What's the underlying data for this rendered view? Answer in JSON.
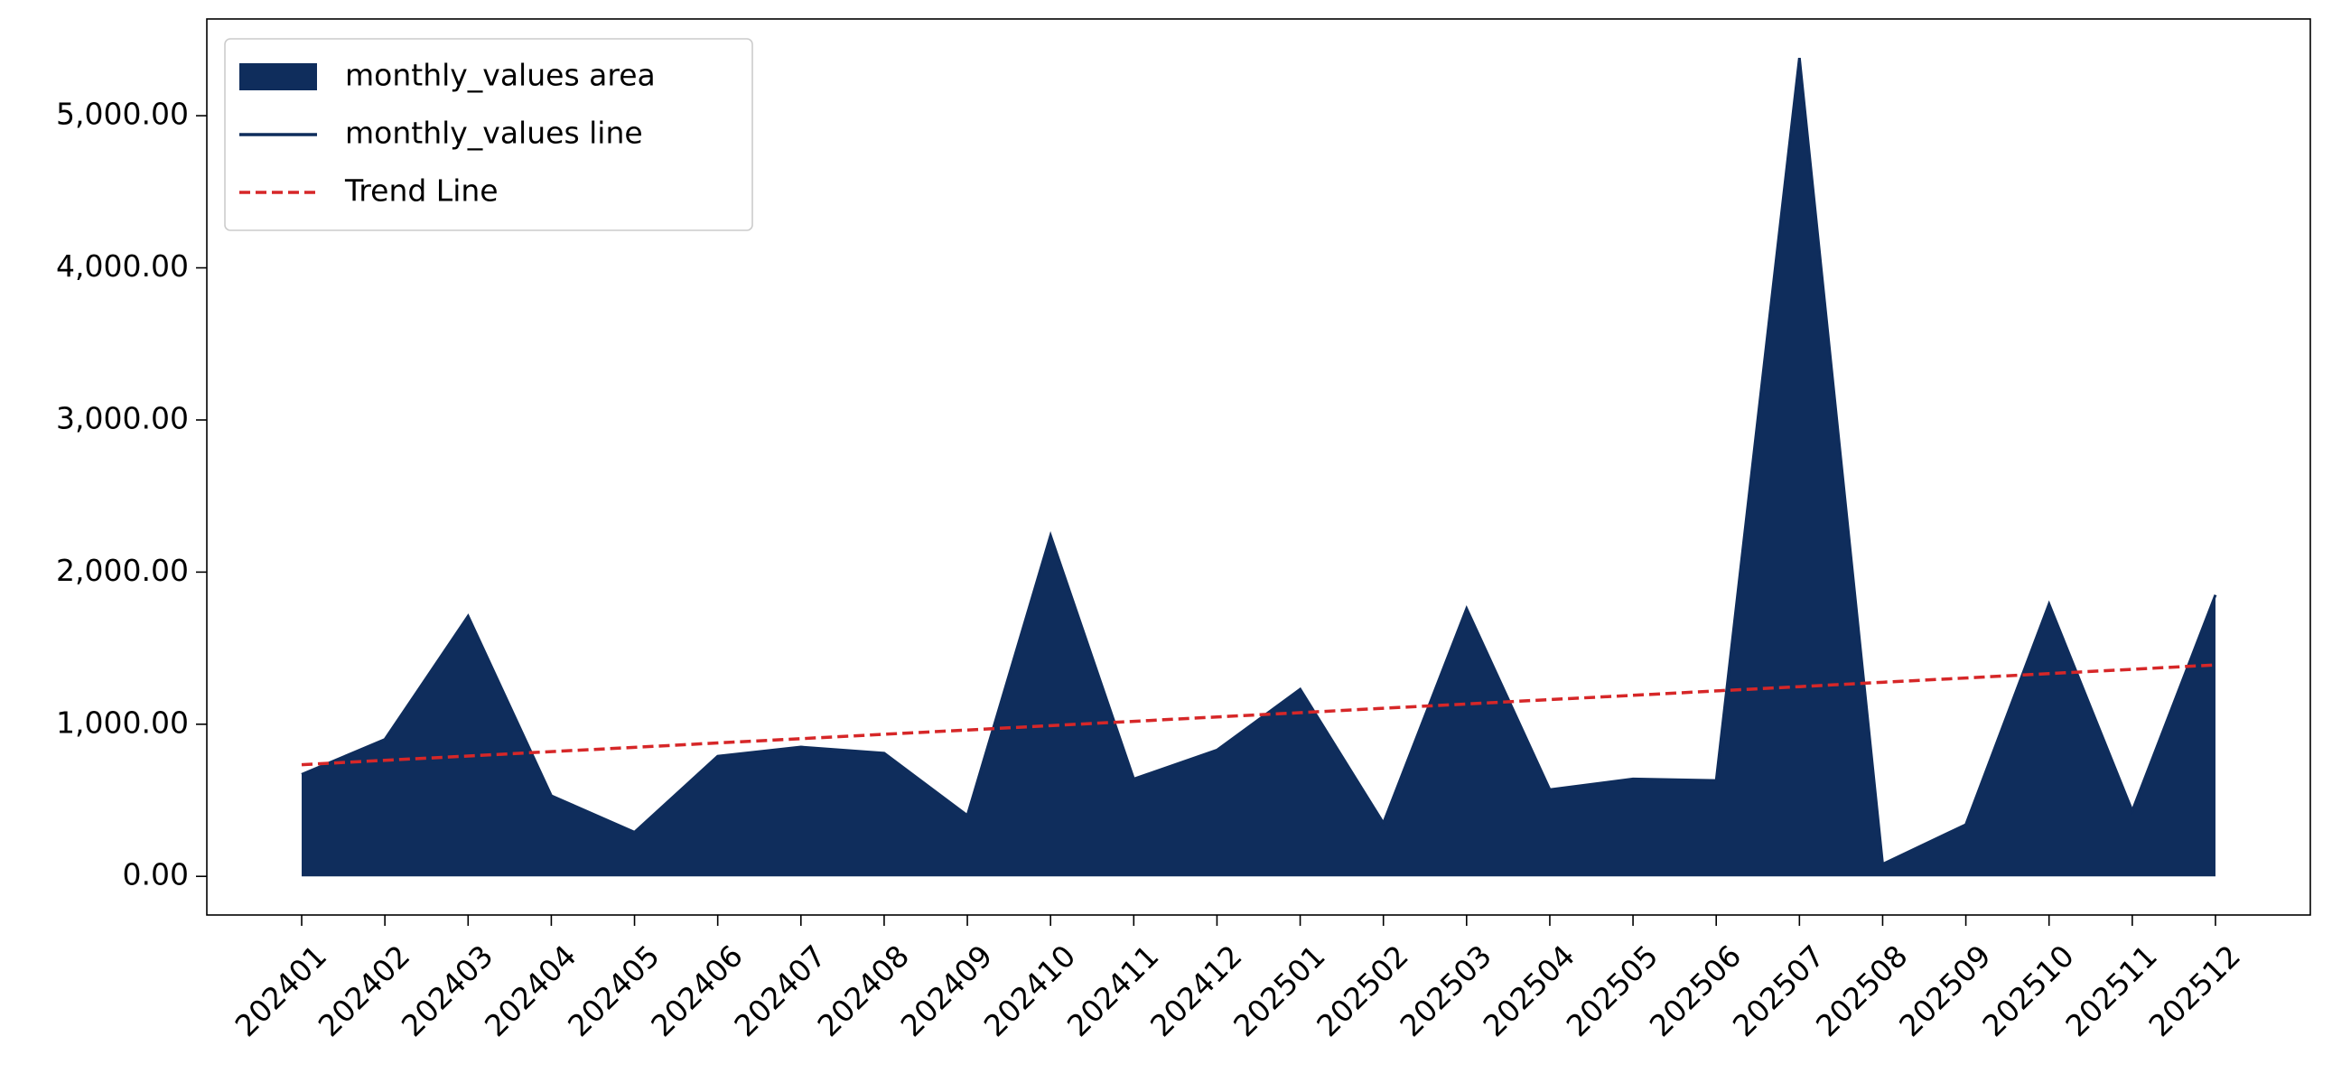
{
  "chart_data": {
    "type": "area",
    "categories": [
      "202401",
      "202402",
      "202403",
      "202404",
      "202405",
      "202406",
      "202407",
      "202408",
      "202409",
      "202410",
      "202411",
      "202412",
      "202501",
      "202502",
      "202503",
      "202504",
      "202505",
      "202506",
      "202507",
      "202508",
      "202509",
      "202510",
      "202511",
      "202512"
    ],
    "series": [
      {
        "name": "monthly_values area",
        "kind": "area",
        "color": "#0f2d5c",
        "values": [
          670,
          900,
          1710,
          530,
          290,
          790,
          850,
          810,
          400,
          2240,
          640,
          830,
          1230,
          350,
          1760,
          570,
          640,
          630,
          5380,
          80,
          340,
          1790,
          430,
          1850
        ]
      },
      {
        "name": "monthly_values line",
        "kind": "line",
        "color": "#0f2d5c",
        "values": [
          670,
          900,
          1710,
          530,
          290,
          790,
          850,
          810,
          400,
          2240,
          640,
          830,
          1230,
          350,
          1760,
          570,
          640,
          630,
          5380,
          80,
          340,
          1790,
          430,
          1850
        ]
      },
      {
        "name": "Trend Line",
        "kind": "dashed",
        "color": "#d62728",
        "values": [
          734,
          763,
          791,
          820,
          848,
          877,
          905,
          934,
          962,
          991,
          1019,
          1048,
          1076,
          1105,
          1133,
          1162,
          1190,
          1219,
          1247,
          1276,
          1304,
          1333,
          1361,
          1390
        ]
      }
    ],
    "ylim": [
      -254,
      5636
    ],
    "yticks": [
      {
        "value": 0,
        "label": "0.00"
      },
      {
        "value": 1000,
        "label": "1,000.00"
      },
      {
        "value": 2000,
        "label": "2,000.00"
      },
      {
        "value": 3000,
        "label": "3,000.00"
      },
      {
        "value": 4000,
        "label": "4,000.00"
      },
      {
        "value": 5000,
        "label": "5,000.00"
      }
    ],
    "legend": "upper left"
  }
}
